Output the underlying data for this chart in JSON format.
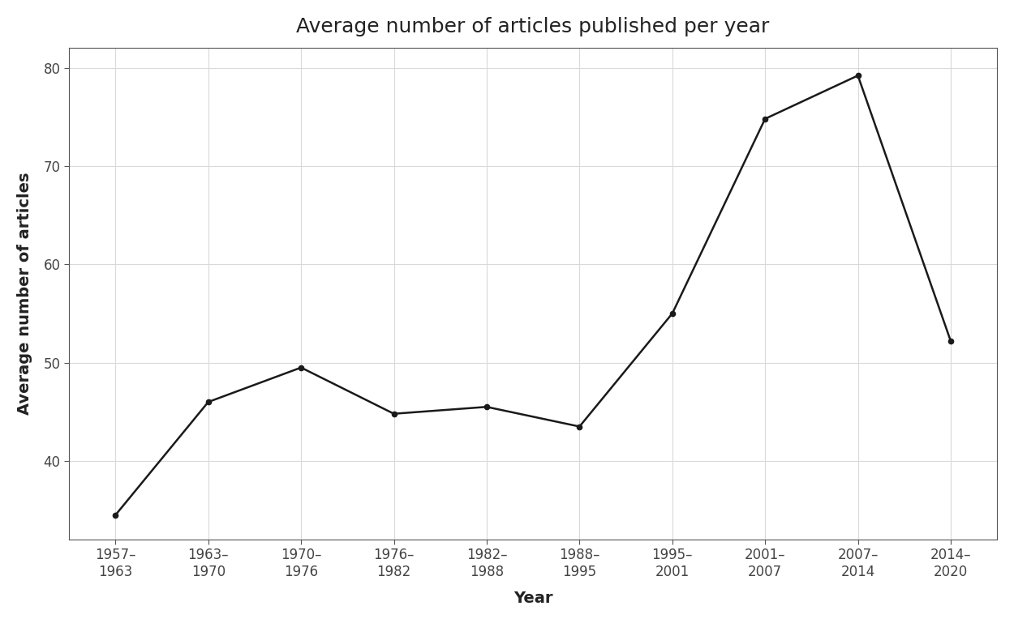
{
  "categories": [
    "1957–\n1963",
    "1963–\n1970",
    "1970–\n1976",
    "1976–\n1982",
    "1982–\n1988",
    "1988–\n1995",
    "1995–\n2001",
    "2001–\n2007",
    "2007–\n2014",
    "2014–\n2020"
  ],
  "values": [
    34.5,
    46.0,
    49.5,
    44.8,
    45.5,
    43.5,
    55.0,
    74.8,
    79.2,
    52.2
  ],
  "title": "Average number of articles published per year",
  "xlabel": "Year",
  "ylabel": "Average number of articles",
  "ylim": [
    32,
    82
  ],
  "yticks": [
    40,
    50,
    60,
    70,
    80
  ],
  "line_color": "#1a1a1a",
  "marker": "o",
  "marker_size": 4.5,
  "line_width": 1.8,
  "background_color": "#ffffff",
  "panel_color": "#ffffff",
  "grid_color": "#d9d9d9",
  "spine_color": "#555555",
  "title_fontsize": 18,
  "label_fontsize": 14,
  "tick_fontsize": 12
}
